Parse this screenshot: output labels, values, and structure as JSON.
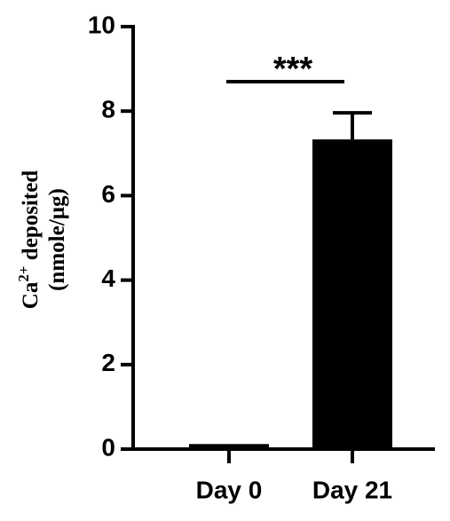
{
  "chart_data": {
    "type": "bar",
    "categories": [
      "Day 0",
      "Day 21"
    ],
    "values": [
      0.12,
      7.33
    ],
    "errors": [
      0,
      0.63
    ],
    "color": "#000000",
    "ylim": [
      0,
      10
    ],
    "yticks": [
      0,
      2,
      4,
      6,
      8,
      10
    ],
    "ylabel": {
      "base": "Ca",
      "superscript": "2+",
      "rest": " deposited",
      "line2": "(nmole/µg)"
    },
    "annotation": "***"
  }
}
